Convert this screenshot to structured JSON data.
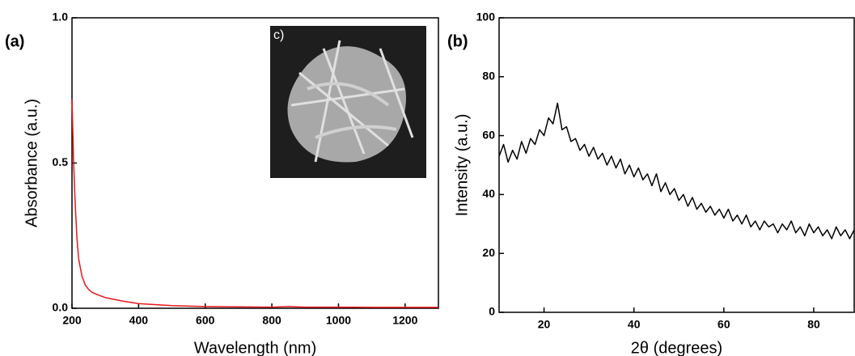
{
  "chart_data": [
    {
      "type": "line",
      "panel_label": "(a)",
      "inset_label": "c)",
      "x_label": "Wavelength (nm)",
      "y_label": "Absorbance (a.u.)",
      "xlim": [
        200,
        1300
      ],
      "ylim": [
        0,
        1
      ],
      "xticks": [
        200,
        400,
        600,
        800,
        1000,
        1200
      ],
      "yticks": [
        {
          "value": 0,
          "label": "0.0"
        },
        0.5,
        {
          "value": 1,
          "label": "1.0"
        }
      ],
      "series": [
        {
          "color": "#e8161b",
          "x": [
            200,
            205,
            210,
            215,
            220,
            230,
            240,
            250,
            260,
            280,
            300,
            350,
            400,
            500,
            600,
            700,
            800,
            850,
            900,
            1000,
            1100,
            1200,
            1300
          ],
          "values": [
            0.72,
            0.5,
            0.35,
            0.24,
            0.17,
            0.11,
            0.08,
            0.065,
            0.055,
            0.045,
            0.037,
            0.025,
            0.016,
            0.009,
            0.006,
            0.005,
            0.004,
            0.006,
            0.004,
            0.004,
            0.003,
            0.003,
            0.003
          ]
        }
      ]
    },
    {
      "type": "line",
      "panel_label": "(b)",
      "x_label": "2θ (degrees)",
      "y_label": "Intensity (a.u.)",
      "xlim": [
        10,
        89
      ],
      "ylim": [
        0,
        100
      ],
      "xticks": [
        20,
        40,
        60,
        80
      ],
      "yticks": [
        0,
        20,
        40,
        60,
        80,
        100
      ],
      "series": [
        {
          "color": "#000000",
          "x": [
            10,
            11,
            12,
            13,
            14,
            15,
            16,
            17,
            18,
            19,
            20,
            21,
            22,
            23,
            24,
            25,
            26,
            27,
            28,
            29,
            30,
            31,
            32,
            33,
            34,
            35,
            36,
            37,
            38,
            39,
            40,
            41,
            42,
            43,
            44,
            45,
            46,
            47,
            48,
            49,
            50,
            51,
            52,
            53,
            54,
            55,
            56,
            57,
            58,
            59,
            60,
            61,
            62,
            63,
            64,
            65,
            66,
            67,
            68,
            69,
            70,
            71,
            72,
            73,
            74,
            75,
            76,
            77,
            78,
            79,
            80,
            81,
            82,
            83,
            84,
            85,
            86,
            87,
            88,
            89
          ],
          "values": [
            53,
            57,
            51,
            55,
            52,
            58,
            54,
            59,
            57,
            62,
            60,
            66,
            64,
            71,
            62,
            63,
            58,
            59,
            55,
            57,
            53,
            56,
            52,
            54,
            50,
            53,
            49,
            52,
            47,
            50,
            46,
            49,
            45,
            47,
            43,
            47,
            41,
            44,
            40,
            42,
            38,
            40,
            36,
            39,
            35,
            37,
            34,
            36,
            33,
            35,
            32,
            35,
            31,
            33,
            30,
            33,
            29,
            31,
            28,
            31,
            29,
            30,
            27,
            30,
            28,
            31,
            27,
            29,
            26,
            30,
            27,
            29,
            26,
            28,
            25,
            29,
            26,
            28,
            25,
            28
          ]
        }
      ]
    }
  ]
}
